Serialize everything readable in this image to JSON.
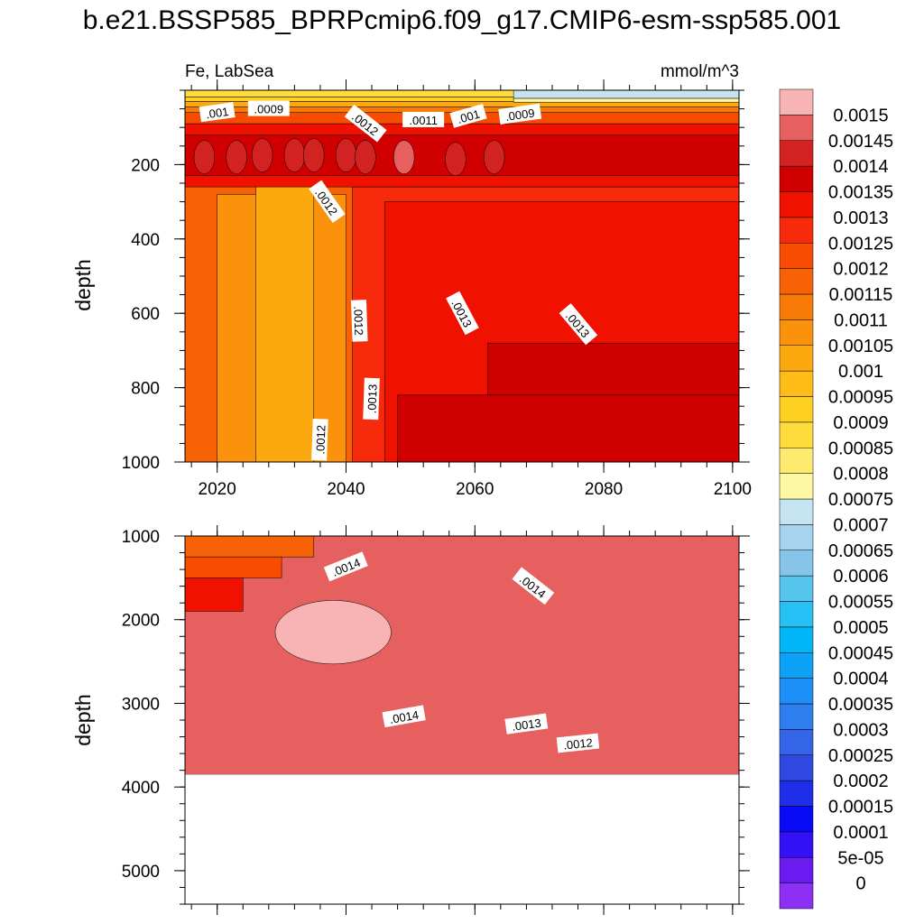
{
  "page": {
    "title": "b.e21.BSSP585_BPRPcmip6.f09_g17.CMIP6-esm-ssp585.001"
  },
  "chart_data": [
    {
      "type": "heatmap",
      "panel": "top",
      "left_label": "Fe, LabSea",
      "right_label": "mmol/m^3",
      "xlabel": "",
      "ylabel": "depth",
      "x_range": [
        2015,
        2101
      ],
      "y_range": [
        0,
        1000
      ],
      "x_ticks": [
        2020,
        2040,
        2060,
        2080,
        2100
      ],
      "x_tick_labels": [
        "2020",
        "2040",
        "2060",
        "2080",
        "2100"
      ],
      "y_ticks": [
        200,
        400,
        600,
        800,
        1000
      ],
      "y_tick_labels": [
        "200",
        "400",
        "600",
        "800",
        "1000"
      ],
      "regions": [
        {
          "x": [
            2015,
            2101
          ],
          "y": [
            0,
            1000
          ],
          "value": 0.00115
        },
        {
          "x": [
            2020,
            2040
          ],
          "y": [
            280,
            1000
          ],
          "value": 0.00105
        },
        {
          "x": [
            2026,
            2035
          ],
          "y": [
            250,
            1000
          ],
          "value": 0.001
        },
        {
          "x": [
            2041,
            2101
          ],
          "y": [
            260,
            1000
          ],
          "value": 0.00125
        },
        {
          "x": [
            2046,
            2101
          ],
          "y": [
            300,
            1000
          ],
          "value": 0.0013
        },
        {
          "x": [
            2048,
            2101
          ],
          "y": [
            820,
            1000
          ],
          "value": 0.00135
        },
        {
          "x": [
            2062,
            2101
          ],
          "y": [
            680,
            820
          ],
          "value": 0.00135
        },
        {
          "x": [
            2015,
            2101
          ],
          "y": [
            90,
            260
          ],
          "value": 0.0013
        },
        {
          "x": [
            2015,
            2101
          ],
          "y": [
            120,
            230
          ],
          "value": 0.00135
        },
        {
          "x": [
            2015,
            2101
          ],
          "y": [
            60,
            90
          ],
          "value": 0.0012
        },
        {
          "x": [
            2015,
            2101
          ],
          "y": [
            45,
            60
          ],
          "value": 0.0011
        },
        {
          "x": [
            2015,
            2101
          ],
          "y": [
            30,
            45
          ],
          "value": 0.001
        },
        {
          "x": [
            2015,
            2101
          ],
          "y": [
            18,
            30
          ],
          "value": 0.0009
        },
        {
          "x": [
            2015,
            2101
          ],
          "y": [
            0,
            18
          ],
          "value": 0.00085
        },
        {
          "x": [
            2066,
            2101
          ],
          "y": [
            0,
            22
          ],
          "value": 0.0007
        },
        {
          "x": [
            2066,
            2101
          ],
          "y": [
            22,
            32
          ],
          "value": 0.00075
        }
      ],
      "cells": [
        {
          "x": 2018,
          "y": 180,
          "value": 0.0014
        },
        {
          "x": 2023,
          "y": 180,
          "value": 0.0014
        },
        {
          "x": 2027,
          "y": 175,
          "value": 0.0014
        },
        {
          "x": 2032,
          "y": 175,
          "value": 0.0014
        },
        {
          "x": 2035,
          "y": 175,
          "value": 0.0014
        },
        {
          "x": 2040,
          "y": 175,
          "value": 0.0014
        },
        {
          "x": 2043,
          "y": 180,
          "value": 0.0014
        },
        {
          "x": 2049,
          "y": 180,
          "value": 0.00145
        },
        {
          "x": 2057,
          "y": 185,
          "value": 0.0014
        },
        {
          "x": 2063,
          "y": 180,
          "value": 0.0014
        }
      ],
      "contour_labels": [
        {
          "text": ".001",
          "x": 2020,
          "y": 60,
          "angle": -8
        },
        {
          "text": ".0009",
          "x": 2028,
          "y": 50,
          "angle": 0
        },
        {
          "text": ".0012",
          "x": 2043,
          "y": 90,
          "angle": 38
        },
        {
          "text": ".0011",
          "x": 2052,
          "y": 80,
          "angle": 0
        },
        {
          "text": ".001",
          "x": 2059,
          "y": 70,
          "angle": -16
        },
        {
          "text": ".0009",
          "x": 2067,
          "y": 65,
          "angle": -8
        },
        {
          "text": ".0012",
          "x": 2037,
          "y": 300,
          "angle": 55
        },
        {
          "text": ".0012",
          "x": 2042,
          "y": 620,
          "angle": 88
        },
        {
          "text": ".0013",
          "x": 2058,
          "y": 600,
          "angle": 62
        },
        {
          "text": ".0013",
          "x": 2076,
          "y": 630,
          "angle": 50
        },
        {
          "text": ".0013",
          "x": 2044,
          "y": 830,
          "angle": -88
        },
        {
          "text": ".0012",
          "x": 2036,
          "y": 940,
          "angle": -88
        }
      ]
    },
    {
      "type": "heatmap",
      "panel": "bottom",
      "xlabel": "",
      "ylabel": "depth",
      "x_range": [
        2015,
        2101
      ],
      "y_range": [
        1000,
        5400
      ],
      "x_ticks": [
        2020,
        2040,
        2060,
        2080,
        2100
      ],
      "y_ticks": [
        1000,
        2000,
        3000,
        4000,
        5000
      ],
      "y_tick_labels": [
        "1000",
        "2000",
        "3000",
        "4000",
        "5000"
      ],
      "data_bottom": 3850,
      "regions": [
        {
          "x": [
            2015,
            2101
          ],
          "y": [
            1000,
            3850
          ],
          "value": 0.00145
        },
        {
          "x": [
            2015,
            2035
          ],
          "y": [
            1000,
            1250
          ],
          "value": 0.00115
        },
        {
          "x": [
            2015,
            2030
          ],
          "y": [
            1250,
            1500
          ],
          "value": 0.0012
        },
        {
          "x": [
            2015,
            2024
          ],
          "y": [
            1500,
            1900
          ],
          "value": 0.0013
        }
      ],
      "cells": [
        {
          "x": 2038,
          "y": 2150,
          "value": 0.0015
        }
      ],
      "contour_labels": [
        {
          "text": ".0014",
          "x": 2040,
          "y": 1370,
          "angle": -22
        },
        {
          "text": ".0014",
          "x": 2069,
          "y": 1600,
          "angle": 38
        },
        {
          "text": ".0014",
          "x": 2049,
          "y": 3160,
          "angle": -10
        },
        {
          "text": ".0013",
          "x": 2068,
          "y": 3250,
          "angle": -8
        },
        {
          "text": ".0012",
          "x": 2076,
          "y": 3480,
          "angle": -6
        }
      ]
    }
  ],
  "colorbar": {
    "levels": [
      "0",
      "5e-05",
      "0.0001",
      "0.00015",
      "0.0002",
      "0.00025",
      "0.0003",
      "0.00035",
      "0.0004",
      "0.00045",
      "0.0005",
      "0.00055",
      "0.0006",
      "0.00065",
      "0.0007",
      "0.00075",
      "0.0008",
      "0.00085",
      "0.0009",
      "0.00095",
      "0.001",
      "0.00105",
      "0.0011",
      "0.00115",
      "0.0012",
      "0.00125",
      "0.0013",
      "0.00135",
      "0.0014",
      "0.00145",
      "0.0015"
    ],
    "colors": [
      "#8d2ff5",
      "#6a1cf0",
      "#3410f5",
      "#0a0bf6",
      "#1f2ee8",
      "#2e48e0",
      "#3465e8",
      "#2f7ef0",
      "#1e8ff6",
      "#0da2f6",
      "#00b6f6",
      "#27c0f4",
      "#56c6ee",
      "#87c4ea",
      "#a6d3ed",
      "#c6e3f2",
      "#fef8a2",
      "#fdeb6f",
      "#fddc3c",
      "#fed022",
      "#fdbc17",
      "#fca80f",
      "#fa920b",
      "#f87b07",
      "#f76206",
      "#f84c03",
      "#f72b0b",
      "#f01100",
      "#d00000",
      "#d32222",
      "#e66060",
      "#f8b4b4"
    ]
  },
  "colors": {
    "contour_line": "#000000",
    "missing": "#ffffff"
  }
}
